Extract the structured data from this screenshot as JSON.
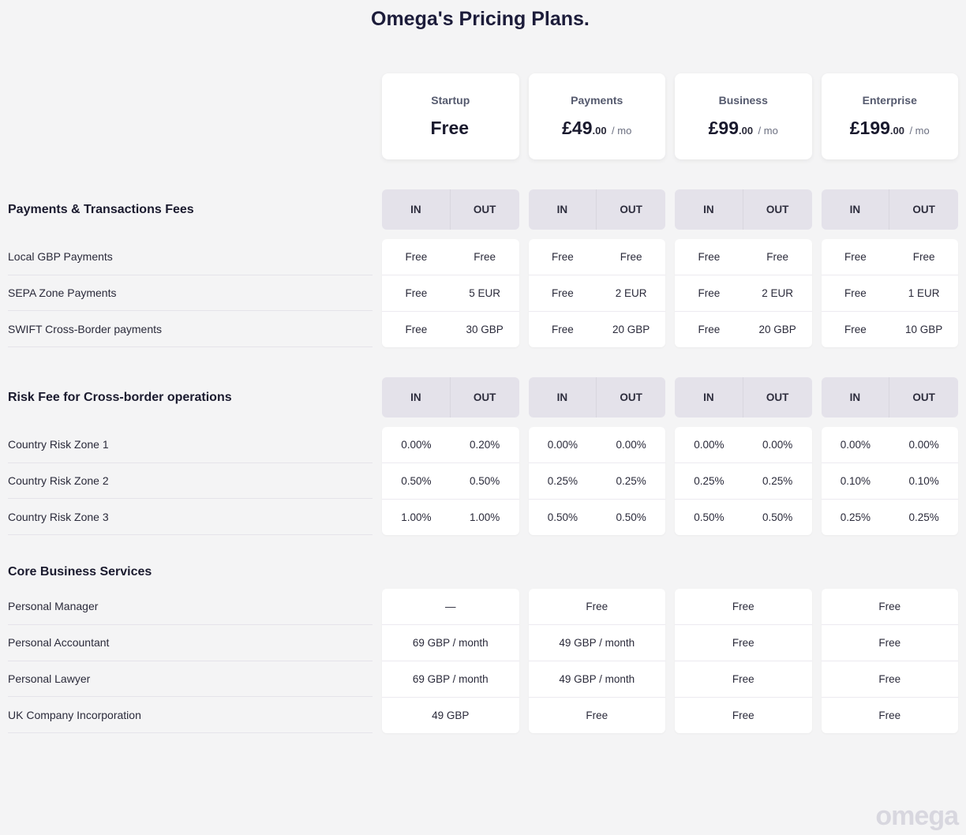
{
  "title": "Omega's Pricing Plans.",
  "watermark": "omega",
  "colors": {
    "page_bg": "#f4f4f5",
    "card_bg": "#ffffff",
    "header_pill_bg": "#e4e2ea",
    "text_primary": "#1a1a2e",
    "text_muted": "#6b6f80",
    "row_border": "#e5e3ea"
  },
  "header_labels": {
    "in": "IN",
    "out": "OUT"
  },
  "plans": [
    {
      "name": "Startup",
      "price_main": "Free",
      "price_cents": "",
      "period": ""
    },
    {
      "name": "Payments",
      "price_main": "£49",
      "price_cents": ".00",
      "period": "/ mo"
    },
    {
      "name": "Business",
      "price_main": "£99",
      "price_cents": ".00",
      "period": "/ mo"
    },
    {
      "name": "Enterprise",
      "price_main": "£199",
      "price_cents": ".00",
      "period": "/ mo"
    }
  ],
  "sections": [
    {
      "title": "Payments & Transactions Fees",
      "in_out": true,
      "rows": [
        {
          "label": "Local GBP Payments",
          "values": [
            [
              "Free",
              "Free"
            ],
            [
              "Free",
              "Free"
            ],
            [
              "Free",
              "Free"
            ],
            [
              "Free",
              "Free"
            ]
          ]
        },
        {
          "label": "SEPA Zone Payments",
          "values": [
            [
              "Free",
              "5 EUR"
            ],
            [
              "Free",
              "2 EUR"
            ],
            [
              "Free",
              "2 EUR"
            ],
            [
              "Free",
              "1 EUR"
            ]
          ]
        },
        {
          "label": "SWIFT Cross-Border payments",
          "values": [
            [
              "Free",
              "30 GBP"
            ],
            [
              "Free",
              "20 GBP"
            ],
            [
              "Free",
              "20 GBP"
            ],
            [
              "Free",
              "10 GBP"
            ]
          ]
        }
      ]
    },
    {
      "title": "Risk Fee for Cross-border operations",
      "in_out": true,
      "rows": [
        {
          "label": "Country Risk Zone 1",
          "values": [
            [
              "0.00%",
              "0.20%"
            ],
            [
              "0.00%",
              "0.00%"
            ],
            [
              "0.00%",
              "0.00%"
            ],
            [
              "0.00%",
              "0.00%"
            ]
          ]
        },
        {
          "label": "Country Risk Zone 2",
          "values": [
            [
              "0.50%",
              "0.50%"
            ],
            [
              "0.25%",
              "0.25%"
            ],
            [
              "0.25%",
              "0.25%"
            ],
            [
              "0.10%",
              "0.10%"
            ]
          ]
        },
        {
          "label": "Country Risk Zone 3",
          "values": [
            [
              "1.00%",
              "1.00%"
            ],
            [
              "0.50%",
              "0.50%"
            ],
            [
              "0.50%",
              "0.50%"
            ],
            [
              "0.25%",
              "0.25%"
            ]
          ]
        }
      ]
    },
    {
      "title": "Core Business Services",
      "in_out": false,
      "rows": [
        {
          "label": "Personal Manager",
          "values": [
            [
              "—"
            ],
            [
              "Free"
            ],
            [
              "Free"
            ],
            [
              "Free"
            ]
          ]
        },
        {
          "label": "Personal Accountant",
          "values": [
            [
              "69 GBP / month"
            ],
            [
              "49 GBP / month"
            ],
            [
              "Free"
            ],
            [
              "Free"
            ]
          ]
        },
        {
          "label": "Personal Lawyer",
          "values": [
            [
              "69 GBP / month"
            ],
            [
              "49 GBP / month"
            ],
            [
              "Free"
            ],
            [
              "Free"
            ]
          ]
        },
        {
          "label": "UK Company Incorporation",
          "values": [
            [
              "49 GBP"
            ],
            [
              "Free"
            ],
            [
              "Free"
            ],
            [
              "Free"
            ]
          ]
        }
      ]
    }
  ]
}
